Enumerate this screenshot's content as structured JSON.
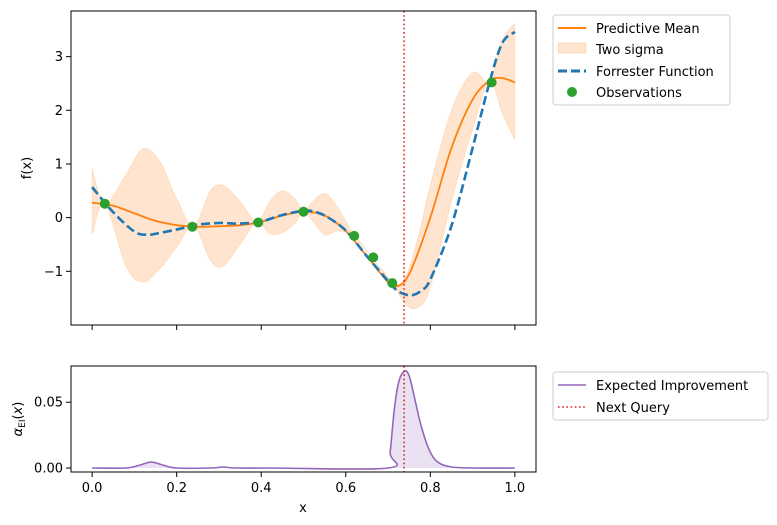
{
  "chart_data": [
    {
      "type": "line",
      "title": "",
      "xlabel": "",
      "ylabel": "f(x)",
      "xlim": [
        -0.05,
        1.05
      ],
      "ylim": [
        -2.0,
        3.85
      ],
      "xticks": [
        0.0,
        0.2,
        0.4,
        0.6,
        0.8,
        1.0
      ],
      "xtick_labels_shown": false,
      "yticks": [
        -1,
        0,
        1,
        2,
        3
      ],
      "ytick_labels": [
        "−1",
        "0",
        "1",
        "2",
        "3"
      ],
      "grid": false,
      "legend_position": "outside-upper-right",
      "next_query_x": 0.738,
      "series": [
        {
          "name": "Predictive Mean",
          "style": "solid",
          "color": "#ff7f0e",
          "x": [
            0.0,
            0.05,
            0.1,
            0.15,
            0.2,
            0.25,
            0.3,
            0.35,
            0.4,
            0.45,
            0.5,
            0.55,
            0.6,
            0.65,
            0.7,
            0.72,
            0.75,
            0.8,
            0.85,
            0.9,
            0.94,
            0.97,
            1.0
          ],
          "y": [
            0.28,
            0.22,
            0.08,
            -0.06,
            -0.14,
            -0.17,
            -0.16,
            -0.14,
            -0.08,
            0.04,
            0.11,
            0.04,
            -0.25,
            -0.72,
            -1.2,
            -1.28,
            -1.05,
            0.0,
            1.3,
            2.2,
            2.55,
            2.6,
            2.52
          ]
        },
        {
          "name": "Two sigma",
          "style": "band",
          "color": "#ff7f0e",
          "x": [
            0.0,
            0.03,
            0.08,
            0.12,
            0.16,
            0.2,
            0.24,
            0.28,
            0.31,
            0.35,
            0.39,
            0.42,
            0.45,
            0.48,
            0.5,
            0.52,
            0.55,
            0.58,
            0.62,
            0.66,
            0.71,
            0.74,
            0.77,
            0.8,
            0.85,
            0.9,
            0.94,
            0.97,
            1.0
          ],
          "upper": [
            0.92,
            0.26,
            0.8,
            1.28,
            1.05,
            0.35,
            -0.15,
            0.5,
            0.6,
            0.3,
            -0.08,
            0.3,
            0.5,
            0.35,
            0.12,
            0.28,
            0.45,
            0.2,
            -0.33,
            -0.73,
            -1.21,
            -1.12,
            -0.4,
            0.6,
            2.0,
            2.7,
            2.54,
            3.3,
            3.62
          ],
          "lower": [
            -0.32,
            0.26,
            -0.9,
            -1.2,
            -0.95,
            -0.55,
            -0.15,
            -0.8,
            -0.9,
            -0.5,
            -0.08,
            -0.3,
            -0.28,
            -0.1,
            0.12,
            -0.05,
            -0.32,
            -0.25,
            -0.33,
            -0.73,
            -1.21,
            -1.6,
            -1.68,
            -1.3,
            0.3,
            1.65,
            2.54,
            1.95,
            1.45
          ]
        },
        {
          "name": "Forrester Function",
          "style": "dashed",
          "color": "#1f77b4",
          "x": [
            0.0,
            0.05,
            0.1,
            0.13,
            0.15,
            0.2,
            0.25,
            0.3,
            0.35,
            0.4,
            0.45,
            0.5,
            0.52,
            0.55,
            0.6,
            0.65,
            0.7,
            0.72,
            0.74,
            0.76,
            0.78,
            0.8,
            0.85,
            0.9,
            0.94,
            0.97,
            1.0
          ],
          "y": [
            0.57,
            0.1,
            -0.26,
            -0.32,
            -0.3,
            -0.22,
            -0.13,
            -0.1,
            -0.11,
            -0.07,
            0.05,
            0.13,
            0.12,
            0.04,
            -0.24,
            -0.72,
            -1.18,
            -1.35,
            -1.43,
            -1.44,
            -1.35,
            -1.15,
            -0.15,
            1.3,
            2.52,
            3.25,
            3.46
          ]
        },
        {
          "name": "Observations",
          "style": "markers",
          "color": "#2ca02c",
          "x": [
            0.03,
            0.237,
            0.393,
            0.5,
            0.62,
            0.665,
            0.71,
            0.945
          ],
          "y": [
            0.26,
            -0.17,
            -0.09,
            0.11,
            -0.34,
            -0.74,
            -1.22,
            2.52
          ]
        }
      ]
    },
    {
      "type": "area",
      "title": "",
      "xlabel": "x",
      "ylabel": "α_EI(x)",
      "xlim": [
        -0.05,
        1.05
      ],
      "ylim": [
        -0.003,
        0.0775
      ],
      "xticks": [
        0.0,
        0.2,
        0.4,
        0.6,
        0.8,
        1.0
      ],
      "xtick_labels": [
        "0.0",
        "0.2",
        "0.4",
        "0.6",
        "0.8",
        "1.0"
      ],
      "yticks": [
        0.0,
        0.05
      ],
      "ytick_labels": [
        "0.00",
        "0.05"
      ],
      "grid": false,
      "legend_position": "outside-upper-right",
      "next_query_x": 0.738,
      "series": [
        {
          "name": "Expected Improvement",
          "color": "#9467bd",
          "x": [
            0.0,
            0.08,
            0.11,
            0.14,
            0.17,
            0.2,
            0.28,
            0.31,
            0.34,
            0.42,
            0.7,
            0.705,
            0.715,
            0.725,
            0.738,
            0.75,
            0.765,
            0.78,
            0.8,
            0.82,
            0.85,
            0.9,
            1.0
          ],
          "y": [
            0.0,
            0.0,
            0.002,
            0.0045,
            0.002,
            0.0,
            0.0,
            0.0008,
            0.0,
            0.0,
            0.0,
            0.012,
            0.045,
            0.065,
            0.0735,
            0.07,
            0.05,
            0.03,
            0.012,
            0.004,
            0.0008,
            0.0,
            0.0
          ]
        },
        {
          "name": "Next Query",
          "color": "#d62728",
          "style": "dotted",
          "x": [
            0.738,
            0.738
          ],
          "y": [
            -0.003,
            0.0775
          ]
        }
      ]
    }
  ]
}
